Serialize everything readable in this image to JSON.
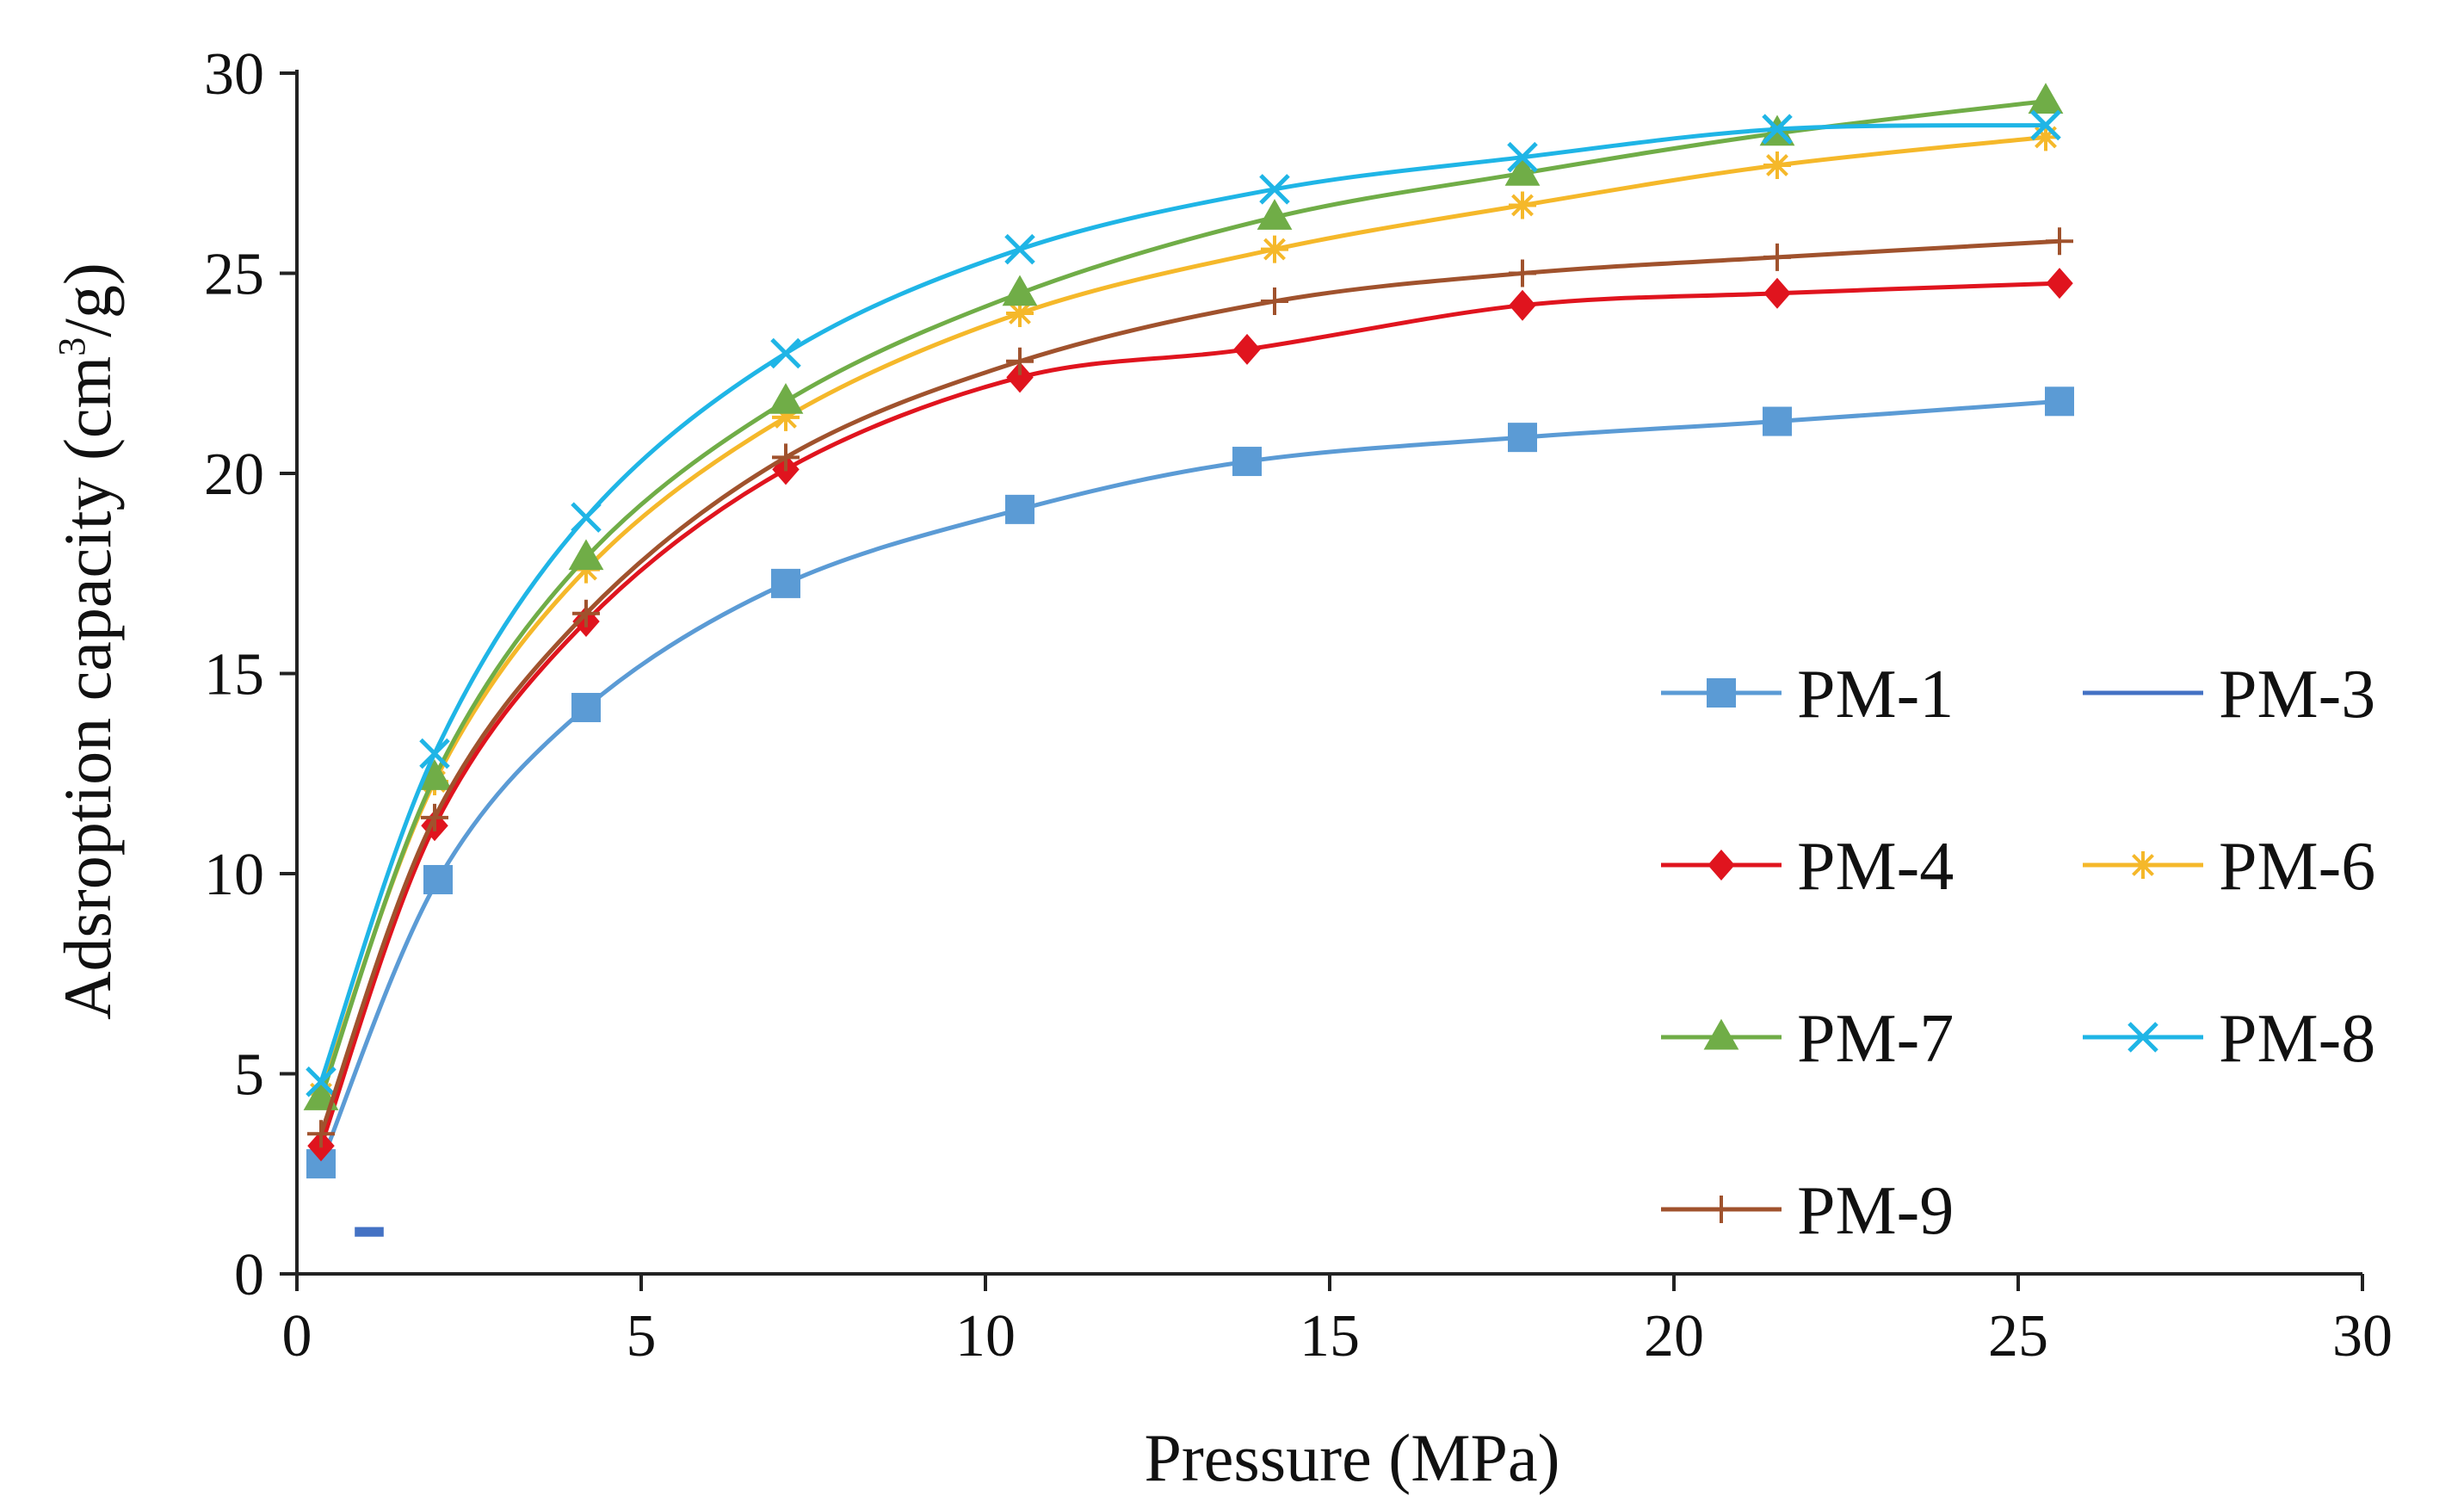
{
  "chart_data": {
    "type": "line",
    "title": "",
    "xlabel": "Pressure (MPa)",
    "ylabel": "Adsroption capacity (cm",
    "ylabel_sup": "3",
    "ylabel_suffix": "/g)",
    "xlim": [
      0,
      30
    ],
    "ylim": [
      0,
      30
    ],
    "xticks": [
      0,
      5,
      10,
      15,
      20,
      25,
      30
    ],
    "yticks": [
      0,
      5,
      10,
      15,
      20,
      25,
      30
    ],
    "grid": false,
    "legend_position": "right",
    "series": [
      {
        "name": "PM-1",
        "color": "#5b9bd5",
        "marker": "square",
        "x": [
          0.35,
          2.05,
          4.2,
          7.1,
          10.5,
          13.8,
          17.8,
          21.5,
          25.6
        ],
        "y": [
          2.75,
          9.85,
          14.15,
          17.25,
          19.1,
          20.3,
          20.9,
          21.3,
          21.8
        ]
      },
      {
        "name": "PM-3",
        "color": "#4472c4",
        "marker": "dash",
        "x": [
          1.05
        ],
        "y": [
          1.05
        ]
      },
      {
        "name": "PM-4",
        "color": "#e0141e",
        "marker": "diamond",
        "x": [
          0.35,
          2.0,
          4.2,
          7.1,
          10.5,
          13.8,
          17.8,
          21.5,
          25.6
        ],
        "y": [
          3.2,
          11.2,
          16.3,
          20.1,
          22.4,
          23.1,
          24.2,
          24.5,
          24.75
        ]
      },
      {
        "name": "PM-6",
        "color": "#f5b82a",
        "marker": "asterisk",
        "x": [
          0.35,
          2.0,
          4.2,
          7.1,
          10.5,
          14.2,
          17.8,
          21.5,
          25.4
        ],
        "y": [
          4.5,
          12.3,
          17.6,
          21.4,
          24.0,
          25.6,
          26.7,
          27.7,
          28.4
        ]
      },
      {
        "name": "PM-7",
        "color": "#70ad47",
        "marker": "triangle",
        "x": [
          0.35,
          2.0,
          4.2,
          7.1,
          10.5,
          14.2,
          17.8,
          21.5,
          25.4
        ],
        "y": [
          4.4,
          12.4,
          17.9,
          21.8,
          24.5,
          26.4,
          27.5,
          28.5,
          29.3
        ]
      },
      {
        "name": "PM-8",
        "color": "#1fb5e6",
        "marker": "x",
        "x": [
          0.35,
          2.0,
          4.2,
          7.1,
          10.5,
          14.2,
          17.8,
          21.5,
          25.4
        ],
        "y": [
          4.8,
          13.0,
          18.9,
          23.0,
          25.6,
          27.1,
          27.9,
          28.6,
          28.7
        ]
      },
      {
        "name": "PM-9",
        "color": "#a0522d",
        "marker": "plus",
        "x": [
          0.35,
          2.0,
          4.2,
          7.1,
          10.5,
          14.2,
          17.8,
          21.5,
          25.6
        ],
        "y": [
          3.5,
          11.4,
          16.5,
          20.4,
          22.8,
          24.3,
          25.0,
          25.4,
          25.8
        ]
      }
    ]
  }
}
